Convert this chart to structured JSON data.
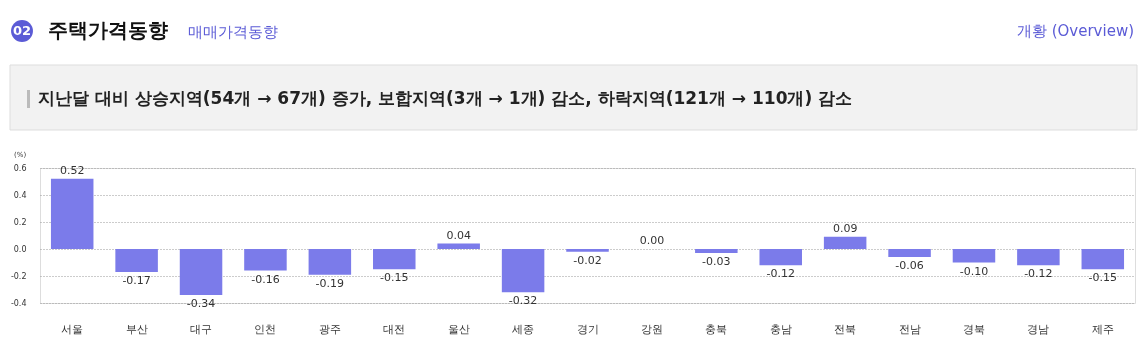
{
  "chart_data": {
    "type": "bar",
    "title": "주택가격동향",
    "subtitle": "매매가격동향",
    "ylabel": "(%)",
    "annotations": [
      "02",
      "개황 (Overview)",
      "지난달 대비 상승지역(54개 → 67개) 증가, 보합지역(3개 → 1개) 감소, 하락지역(121개 → 110개) 감소"
    ],
    "categories": [
      "서울",
      "부산",
      "대구",
      "인천",
      "광주",
      "대전",
      "울산",
      "세종",
      "경기",
      "강원",
      "충북",
      "충남",
      "전북",
      "전남",
      "경북",
      "경남",
      "제주"
    ],
    "values": [
      0.52,
      -0.17,
      -0.34,
      -0.16,
      -0.19,
      -0.15,
      0.04,
      -0.32,
      -0.02,
      0.0,
      -0.03,
      -0.12,
      0.09,
      -0.06,
      -0.1,
      -0.12,
      -0.15
    ],
    "value_labels": [
      "0.52",
      "-0.17",
      "-0.34",
      "-0.16",
      "-0.19",
      "-0.15",
      "0.04",
      "-0.32",
      "-0.02",
      "0.00",
      "-0.03",
      "-0.12",
      "0.09",
      "-0.06",
      "-0.10",
      "-0.12",
      "-0.15"
    ],
    "color": "#7b7bea",
    "ylim": [
      -0.4,
      0.6
    ],
    "yticks": [
      {
        "value": -0.4,
        "label": "-0.4"
      },
      {
        "value": -0.2,
        "label": "-0.2"
      },
      {
        "value": 0,
        "label": "0.0"
      },
      {
        "value": 0.2,
        "label": "0.2"
      },
      {
        "value": 0.4,
        "label": "0.4"
      },
      {
        "value": 0.6,
        "label": "0.6"
      }
    ],
    "grid": "y"
  }
}
